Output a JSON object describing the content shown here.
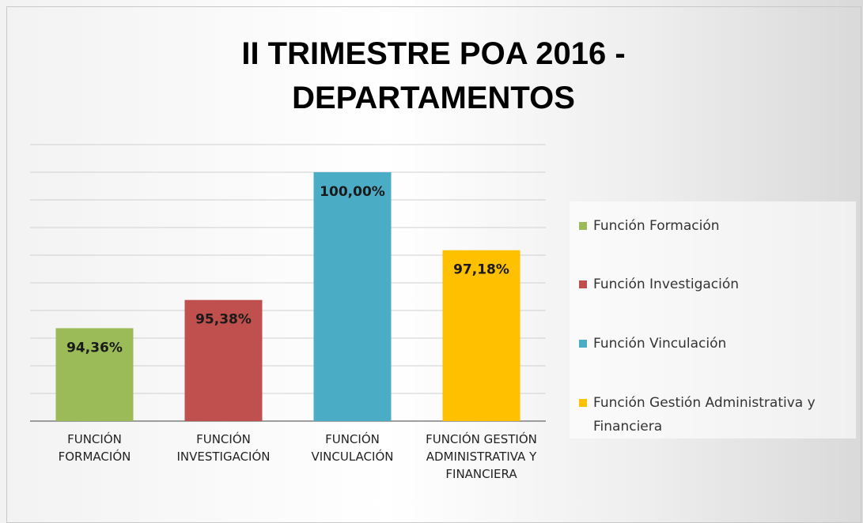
{
  "chart_data": {
    "type": "bar",
    "title": "II TRIMESTRE POA 2016 - DEPARTAMENTOS",
    "categories": [
      "FUNCIÓN FORMACIÓN",
      "FUNCIÓN INVESTIGACIÓN",
      "FUNCIÓN VINCULACIÓN",
      "FUNCIÓN GESTIÓN ADMINISTRATIVA Y FINANCIERA"
    ],
    "values": [
      94.36,
      95.38,
      100,
      97.18
    ],
    "value_labels": [
      "94,36%",
      "95,38%",
      "100,00%",
      "97,18%"
    ],
    "colors": [
      "#9bbb59",
      "#c0504d",
      "#4bacc6",
      "#ffc000"
    ],
    "legend_labels": [
      "Función Formación",
      "Función Investigación",
      "Función Vinculación",
      "Función Gestión Administrativa y Financiera"
    ],
    "ylim": [
      91,
      101
    ],
    "yticks": [
      91,
      92,
      93,
      94,
      95,
      96,
      97,
      98,
      99,
      100,
      101
    ],
    "grid": true
  }
}
